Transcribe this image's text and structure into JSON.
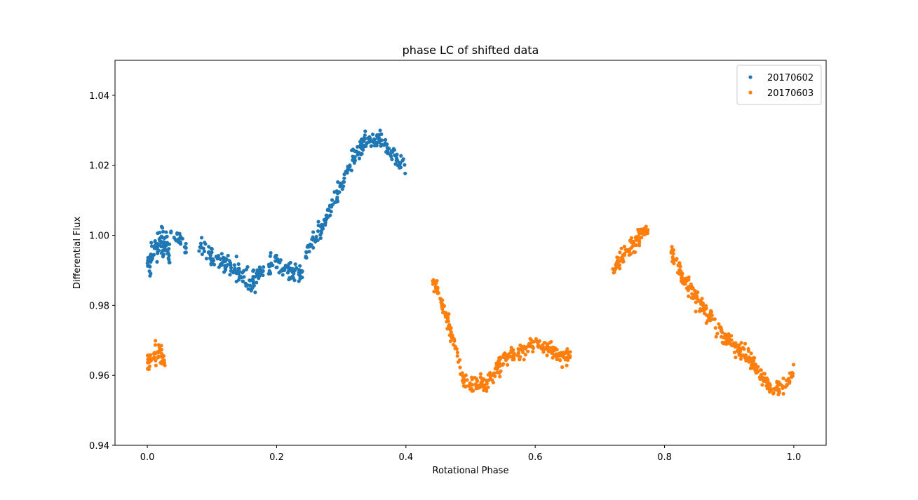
{
  "chart_data": {
    "type": "scatter",
    "title": "phase LC of shifted data",
    "xlabel": "Rotational Phase",
    "ylabel": "Differential Flux",
    "xlim": [
      -0.05,
      1.05
    ],
    "ylim": [
      0.94,
      1.05
    ],
    "xticks": [
      0.0,
      0.2,
      0.4,
      0.6,
      0.8,
      1.0
    ],
    "xtick_labels": [
      "0.0",
      "0.2",
      "0.4",
      "0.6",
      "0.8",
      "1.0"
    ],
    "yticks": [
      0.94,
      0.96,
      0.98,
      1.0,
      1.02,
      1.04
    ],
    "ytick_labels": [
      "0.94",
      "0.96",
      "0.98",
      "1.00",
      "1.02",
      "1.04"
    ],
    "grid": false,
    "legend_position": "top-right",
    "series": [
      {
        "name": "20170602",
        "color": "#1f77b4",
        "segments": [
          {
            "x": [
              0.0,
              0.01,
              0.02,
              0.03,
              0.035
            ],
            "y": [
              0.992,
              0.995,
              0.998,
              0.996,
              0.994
            ],
            "n": 80,
            "noise": 0.0045
          },
          {
            "x": [
              0.035,
              0.05,
              0.06
            ],
            "y": [
              1.0,
              0.999,
              0.996
            ],
            "n": 22,
            "noise": 0.002
          },
          {
            "x": [
              0.08,
              0.1,
              0.12,
              0.14,
              0.16,
              0.18,
              0.2,
              0.22,
              0.24
            ],
            "y": [
              0.998,
              0.994,
              0.992,
              0.99,
              0.986,
              0.991,
              0.992,
              0.99,
              0.989
            ],
            "n": 210,
            "noise": 0.0028
          },
          {
            "x": [
              0.245,
              0.26,
              0.28,
              0.3,
              0.32,
              0.34,
              0.36,
              0.38,
              0.4
            ],
            "y": [
              0.995,
              0.999,
              1.006,
              1.014,
              1.023,
              1.027,
              1.028,
              1.023,
              1.02
            ],
            "n": 200,
            "noise": 0.0026
          }
        ]
      },
      {
        "name": "20170603",
        "color": "#ff7f0e",
        "segments": [
          {
            "x": [
              0.0,
              0.01,
              0.02,
              0.028
            ],
            "y": [
              0.964,
              0.966,
              0.966,
              0.963
            ],
            "n": 55,
            "noise": 0.0028
          },
          {
            "x": [
              0.44,
              0.45,
              0.46,
              0.47,
              0.48,
              0.49,
              0.5,
              0.52,
              0.53,
              0.54
            ],
            "y": [
              0.988,
              0.983,
              0.978,
              0.972,
              0.965,
              0.958,
              0.957,
              0.958,
              0.959,
              0.962
            ],
            "n": 150,
            "noise": 0.0022
          },
          {
            "x": [
              0.54,
              0.56,
              0.58,
              0.6,
              0.62,
              0.64,
              0.655
            ],
            "y": [
              0.962,
              0.966,
              0.967,
              0.969,
              0.968,
              0.965,
              0.966
            ],
            "n": 170,
            "noise": 0.0022
          },
          {
            "x": [
              0.72,
              0.74,
              0.76,
              0.775
            ],
            "y": [
              0.99,
              0.995,
              1.0,
              1.002
            ],
            "n": 90,
            "noise": 0.0022
          },
          {
            "x": [
              0.81,
              0.83,
              0.85,
              0.87,
              0.89,
              0.91,
              0.93,
              0.95,
              0.97,
              0.99,
              1.0
            ],
            "y": [
              0.995,
              0.987,
              0.982,
              0.976,
              0.972,
              0.968,
              0.965,
              0.96,
              0.955,
              0.958,
              0.962
            ],
            "n": 290,
            "noise": 0.0022
          }
        ]
      }
    ]
  }
}
